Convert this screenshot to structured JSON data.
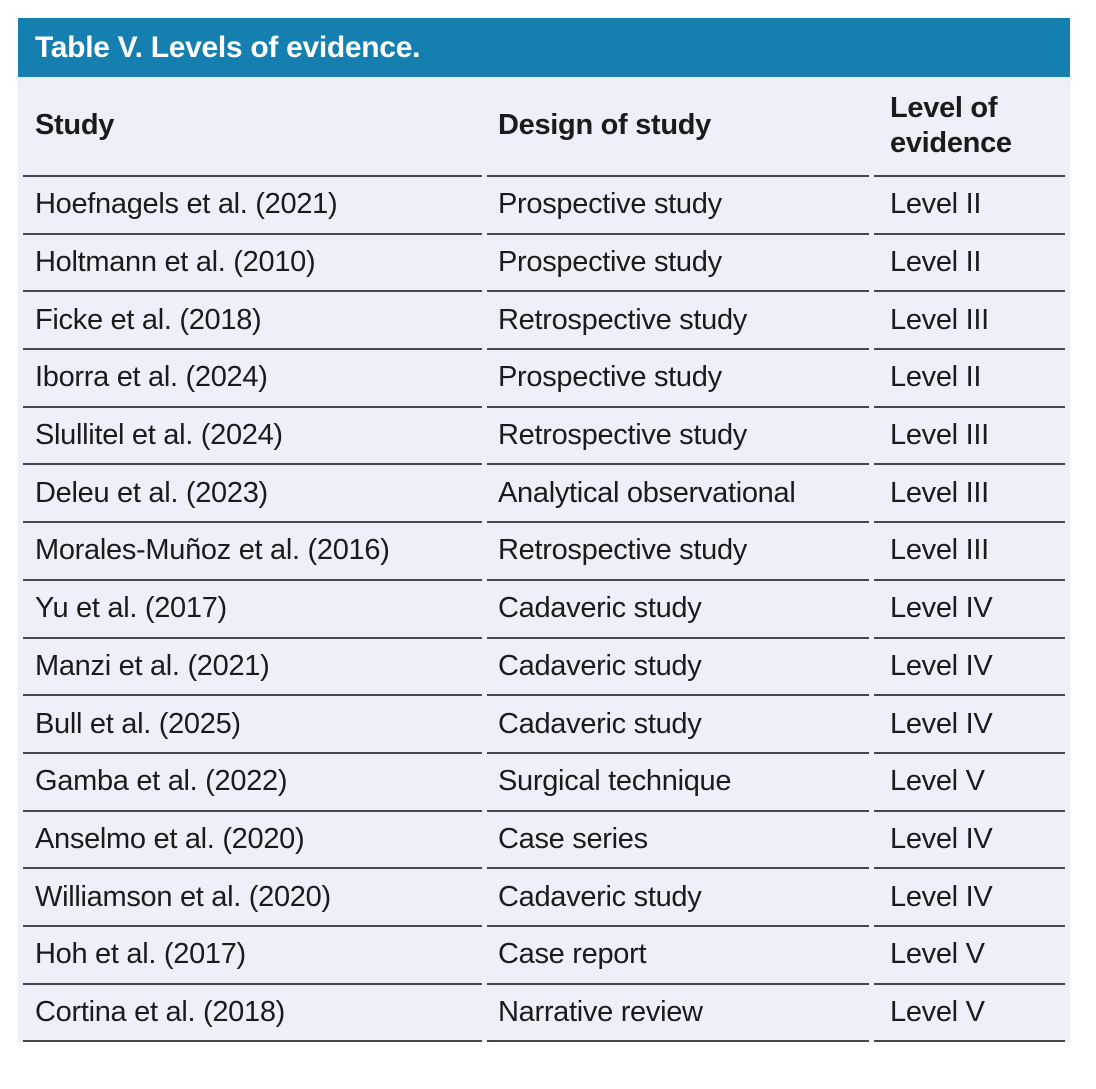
{
  "table": {
    "title": "Table V. Levels of evidence.",
    "columns": [
      "Study",
      "Design of study",
      "Level of evidence"
    ],
    "rows": [
      {
        "study": "Hoefnagels et al. (2021)",
        "design": "Prospective study",
        "level": "Level II"
      },
      {
        "study": "Holtmann et al. (2010)",
        "design": "Prospective study",
        "level": "Level II"
      },
      {
        "study": "Ficke et al. (2018)",
        "design": "Retrospective study",
        "level": "Level III"
      },
      {
        "study": "Iborra et al. (2024)",
        "design": "Prospective study",
        "level": "Level II"
      },
      {
        "study": "Slullitel et al. (2024)",
        "design": "Retrospective study",
        "level": "Level III"
      },
      {
        "study": "Deleu et al. (2023)",
        "design": "Analytical observational",
        "level": "Level III"
      },
      {
        "study": "Morales-Muñoz et al. (2016)",
        "design": "Retrospective study",
        "level": "Level III"
      },
      {
        "study": "Yu et al. (2017)",
        "design": "Cadaveric study",
        "level": "Level IV"
      },
      {
        "study": "Manzi et al. (2021)",
        "design": "Cadaveric study",
        "level": "Level IV"
      },
      {
        "study": "Bull et al. (2025)",
        "design": "Cadaveric study",
        "level": "Level IV"
      },
      {
        "study": "Gamba et al. (2022)",
        "design": "Surgical technique",
        "level": "Level V"
      },
      {
        "study": "Anselmo et al. (2020)",
        "design": "Case series",
        "level": "Level IV"
      },
      {
        "study": "Williamson et al. (2020)",
        "design": "Cadaveric study",
        "level": "Level IV"
      },
      {
        "study": "Hoh et al. (2017)",
        "design": "Case report",
        "level": "Level V"
      },
      {
        "study": "Cortina et al. (2018)",
        "design": "Narrative review",
        "level": "Level V"
      }
    ]
  },
  "colors": {
    "title_bar_bg": "#157fb0",
    "title_text": "#ffffff",
    "row_bg": "#edf0f8",
    "divider": "#47484d",
    "body_text": "#1b1b1b"
  }
}
